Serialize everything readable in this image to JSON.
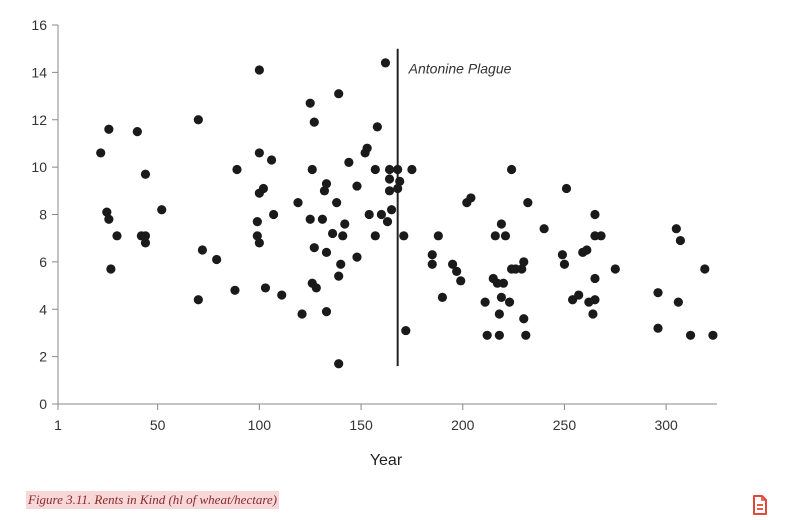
{
  "caption": "Figure 3.11. Rents in Kind (hl of wheat/hectare)",
  "doc_icon": "document-icon",
  "colors": {
    "points": "#1a1a1a",
    "axis": "#888888",
    "caption_bg": "#f7d7d7",
    "caption_text": "#8a2a2a",
    "icon": "#e0483c"
  },
  "chart_data": {
    "type": "scatter",
    "title": "",
    "xlabel": "Year",
    "ylabel": "",
    "xlim": [
      1,
      325
    ],
    "ylim": [
      0,
      16
    ],
    "xticks": [
      1,
      50,
      100,
      150,
      200,
      250,
      300
    ],
    "yticks": [
      0,
      2,
      4,
      6,
      8,
      10,
      12,
      14,
      16
    ],
    "grid": false,
    "annotations": [
      {
        "type": "vline",
        "x": 168,
        "y_range": [
          1.6,
          15.0
        ],
        "label": "Antonine Plague"
      }
    ],
    "points": [
      [
        22,
        10.6
      ],
      [
        25,
        8.1
      ],
      [
        26,
        11.6
      ],
      [
        26,
        7.8
      ],
      [
        27,
        5.7
      ],
      [
        30,
        7.1
      ],
      [
        40,
        11.5
      ],
      [
        42,
        7.1
      ],
      [
        44,
        9.7
      ],
      [
        44,
        7.1
      ],
      [
        44,
        6.8
      ],
      [
        52,
        8.2
      ],
      [
        70,
        12.0
      ],
      [
        70,
        4.4
      ],
      [
        72,
        6.5
      ],
      [
        79,
        6.1
      ],
      [
        88,
        4.8
      ],
      [
        89,
        9.9
      ],
      [
        99,
        7.7
      ],
      [
        99,
        7.1
      ],
      [
        100,
        14.1
      ],
      [
        100,
        10.6
      ],
      [
        100,
        8.9
      ],
      [
        100,
        6.8
      ],
      [
        102,
        9.1
      ],
      [
        103,
        4.9
      ],
      [
        106,
        10.3
      ],
      [
        107,
        8.0
      ],
      [
        111,
        4.6
      ],
      [
        119,
        8.5
      ],
      [
        121,
        3.8
      ],
      [
        125,
        12.7
      ],
      [
        125,
        7.8
      ],
      [
        126,
        9.9
      ],
      [
        126,
        5.1
      ],
      [
        127,
        11.9
      ],
      [
        127,
        6.6
      ],
      [
        128,
        4.9
      ],
      [
        131,
        7.8
      ],
      [
        132,
        9.0
      ],
      [
        133,
        9.3
      ],
      [
        133,
        6.4
      ],
      [
        133,
        3.9
      ],
      [
        136,
        7.2
      ],
      [
        138,
        8.5
      ],
      [
        139,
        13.1
      ],
      [
        139,
        5.4
      ],
      [
        139,
        1.7
      ],
      [
        140,
        5.9
      ],
      [
        141,
        7.1
      ],
      [
        142,
        7.6
      ],
      [
        144,
        10.2
      ],
      [
        148,
        9.2
      ],
      [
        148,
        6.2
      ],
      [
        152,
        10.6
      ],
      [
        153,
        10.8
      ],
      [
        154,
        8.0
      ],
      [
        157,
        9.9
      ],
      [
        157,
        7.1
      ],
      [
        158,
        11.7
      ],
      [
        160,
        8.0
      ],
      [
        162,
        14.4
      ],
      [
        163,
        7.7
      ],
      [
        164,
        9.9
      ],
      [
        164,
        9.0
      ],
      [
        164,
        9.5
      ],
      [
        165,
        8.2
      ],
      [
        168,
        9.9
      ],
      [
        168,
        9.1
      ],
      [
        169,
        9.4
      ],
      [
        171,
        7.1
      ],
      [
        172,
        3.1
      ],
      [
        175,
        9.9
      ],
      [
        185,
        6.3
      ],
      [
        185,
        5.9
      ],
      [
        188,
        7.1
      ],
      [
        190,
        4.5
      ],
      [
        195,
        5.9
      ],
      [
        197,
        5.6
      ],
      [
        199,
        5.2
      ],
      [
        202,
        8.5
      ],
      [
        204,
        8.7
      ],
      [
        211,
        4.3
      ],
      [
        212,
        2.9
      ],
      [
        215,
        5.3
      ],
      [
        216,
        7.1
      ],
      [
        217,
        5.1
      ],
      [
        218,
        3.8
      ],
      [
        218,
        2.9
      ],
      [
        219,
        7.6
      ],
      [
        219,
        4.5
      ],
      [
        220,
        5.1
      ],
      [
        221,
        7.1
      ],
      [
        223,
        4.3
      ],
      [
        224,
        9.9
      ],
      [
        224,
        5.7
      ],
      [
        226,
        5.7
      ],
      [
        229,
        5.7
      ],
      [
        230,
        6.0
      ],
      [
        230,
        3.6
      ],
      [
        231,
        2.9
      ],
      [
        232,
        8.5
      ],
      [
        240,
        7.4
      ],
      [
        249,
        6.3
      ],
      [
        250,
        5.9
      ],
      [
        251,
        9.1
      ],
      [
        254,
        4.4
      ],
      [
        257,
        4.6
      ],
      [
        259,
        6.4
      ],
      [
        261,
        6.5
      ],
      [
        262,
        4.3
      ],
      [
        264,
        3.8
      ],
      [
        265,
        8.0
      ],
      [
        265,
        7.1
      ],
      [
        265,
        5.3
      ],
      [
        265,
        4.4
      ],
      [
        268,
        7.1
      ],
      [
        275,
        5.7
      ],
      [
        296,
        4.7
      ],
      [
        296,
        3.2
      ],
      [
        305,
        7.4
      ],
      [
        306,
        4.3
      ],
      [
        307,
        6.9
      ],
      [
        312,
        2.9
      ],
      [
        319,
        5.7
      ],
      [
        323,
        2.9
      ]
    ]
  }
}
